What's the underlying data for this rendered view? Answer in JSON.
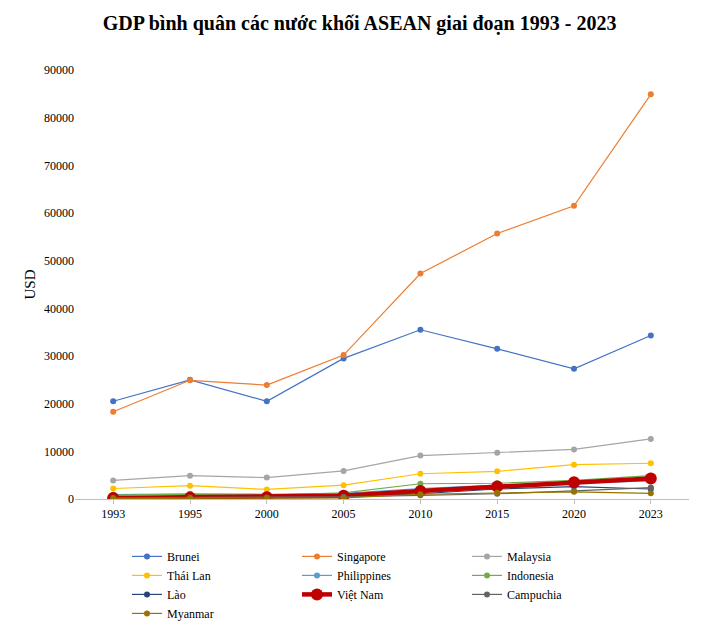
{
  "chart_data": {
    "type": "line",
    "title": "GDP bình quân các nước khối ASEAN giai đoạn 1993 - 2023",
    "y_label": "USD",
    "categories": [
      "1993",
      "1995",
      "2000",
      "2005",
      "2010",
      "2015",
      "2020",
      "2023"
    ],
    "ylim": [
      0,
      90000
    ],
    "yticks": [
      0,
      10000,
      20000,
      30000,
      40000,
      50000,
      60000,
      70000,
      80000,
      90000
    ],
    "grid": false,
    "legend": "bottom",
    "series": [
      {
        "name": "Brunei",
        "color": "#4472c4",
        "marker": "circle",
        "values": [
          20500,
          25000,
          20500,
          29500,
          35500,
          31500,
          27300,
          34300
        ]
      },
      {
        "name": "Singapore",
        "color": "#ed7d31",
        "marker": "circle",
        "values": [
          18300,
          24900,
          23900,
          30200,
          47300,
          55700,
          61500,
          84900
        ]
      },
      {
        "name": "Malaysia",
        "color": "#a5a5a5",
        "marker": "circle",
        "values": [
          3900,
          4900,
          4500,
          5900,
          9100,
          9700,
          10400,
          12600
        ]
      },
      {
        "name": "Thái Lan",
        "color": "#ffc000",
        "marker": "circle",
        "values": [
          2200,
          2800,
          2000,
          2900,
          5300,
          5800,
          7200,
          7500
        ]
      },
      {
        "name": "Philippines",
        "color": "#5b9bd5",
        "marker": "circle",
        "values": [
          900,
          1100,
          1000,
          1200,
          2200,
          2900,
          3300,
          3800
        ]
      },
      {
        "name": "Indonesia",
        "color": "#70ad47",
        "marker": "circle",
        "values": [
          800,
          1000,
          800,
          1300,
          3200,
          3300,
          3900,
          4900
        ]
      },
      {
        "name": "Lào",
        "color": "#264478",
        "marker": "circle",
        "values": [
          300,
          350,
          320,
          480,
          1100,
          2100,
          2600,
          2100
        ]
      },
      {
        "name": "Việt Nam",
        "color": "#c00000",
        "marker": "circle",
        "line_style": "bold",
        "values": [
          200,
          290,
          390,
          690,
          1700,
          2600,
          3500,
          4300
        ]
      },
      {
        "name": "Campuchia",
        "color": "#636363",
        "marker": "circle",
        "values": [
          250,
          320,
          300,
          470,
          780,
          1100,
          1700,
          2400
        ]
      },
      {
        "name": "Myanmar",
        "color": "#997300",
        "marker": "circle",
        "values": [
          100,
          150,
          200,
          250,
          1000,
          1300,
          1500,
          1200
        ]
      }
    ]
  }
}
